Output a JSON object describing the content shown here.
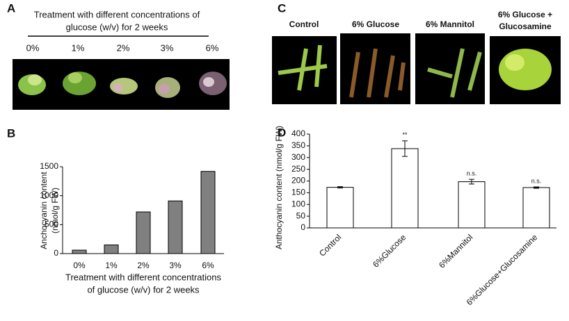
{
  "panel_a": {
    "label": "A",
    "title": [
      "Treatment with different concentrations of",
      "glucose (w/v) for 2 weeks"
    ],
    "concentrations": [
      "0%",
      "1%",
      "2%",
      "3%",
      "6%"
    ]
  },
  "panel_b": {
    "label": "B"
  },
  "panel_c": {
    "label": "C",
    "labels": [
      [
        "Control"
      ],
      [
        "6% Glucose"
      ],
      [
        "6% Mannitol"
      ],
      [
        "6% Glucose +",
        "Glucosamine"
      ]
    ]
  },
  "panel_d": {
    "label": "D"
  },
  "chart_data": [
    {
      "type": "bar",
      "categories": [
        "0%",
        "1%",
        "2%",
        "3%",
        "6%"
      ],
      "values": [
        60,
        150,
        720,
        910,
        1420
      ],
      "color": "#808080",
      "ylabel": [
        "Anchocyanin content",
        "(nmol/g FW)"
      ],
      "xlabel": [
        "Treatment with different concentrations",
        "of glucose (w/v) for 2 weeks"
      ],
      "ylim": [
        0,
        1500
      ],
      "yticks": [
        0,
        500,
        1000,
        1500
      ]
    },
    {
      "type": "bar",
      "categories": [
        "Control",
        "6%Glucose",
        "6%Mannitol",
        "6%Glucose+Glucosamine"
      ],
      "values": [
        173,
        338,
        197,
        172
      ],
      "errors": [
        3,
        33,
        10,
        3
      ],
      "annotations": [
        null,
        "**",
        "n.s.",
        "n.s."
      ],
      "color": "#ffffff",
      "ylabel": [
        "Anthocyanin content (nmol/g FW)"
      ],
      "ylim": [
        0,
        400
      ],
      "yticks": [
        0,
        50,
        100,
        150,
        200,
        250,
        300,
        350,
        400
      ]
    }
  ]
}
